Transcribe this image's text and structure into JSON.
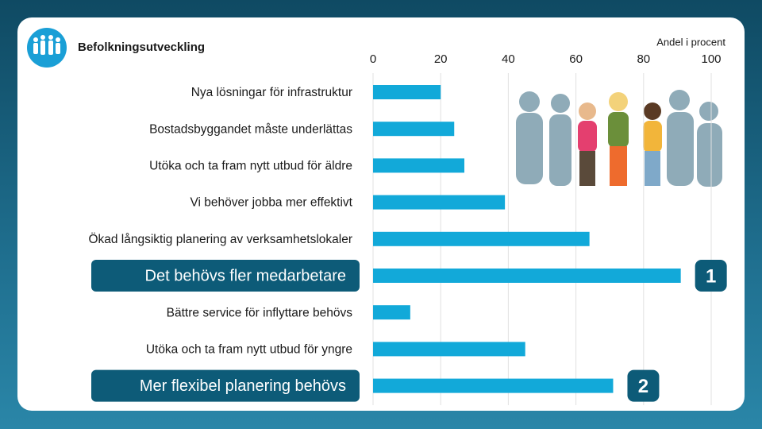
{
  "chart_data": {
    "type": "bar",
    "orientation": "horizontal",
    "title": "Befolkningsutveckling",
    "x_label": "Andel i procent",
    "categories": [
      "Nya lösningar för infrastruktur",
      "Bostadsbyggandet måste underlättas",
      "Utöka och ta fram nytt utbud för äldre",
      "Vi behöver jobba mer effektivt",
      "Ökad långsiktig planering av verksamhetslokaler",
      "Det behövs fler medarbetare",
      "Bättre service för inflyttare behövs",
      "Utöka och ta fram nytt utbud för yngre",
      "Mer flexibel planering behövs"
    ],
    "values": [
      20,
      24,
      27,
      39,
      64,
      91,
      11,
      45,
      71
    ],
    "color": "#12a9d9",
    "xlim": [
      0,
      100
    ],
    "xticks": [
      0,
      20,
      40,
      60,
      80,
      100
    ],
    "grid": true,
    "annotations": [
      {
        "text": "1",
        "category": "Det behövs fler medarbetare"
      },
      {
        "text": "2",
        "category": "Mer flexibel planering behövs"
      }
    ]
  }
}
